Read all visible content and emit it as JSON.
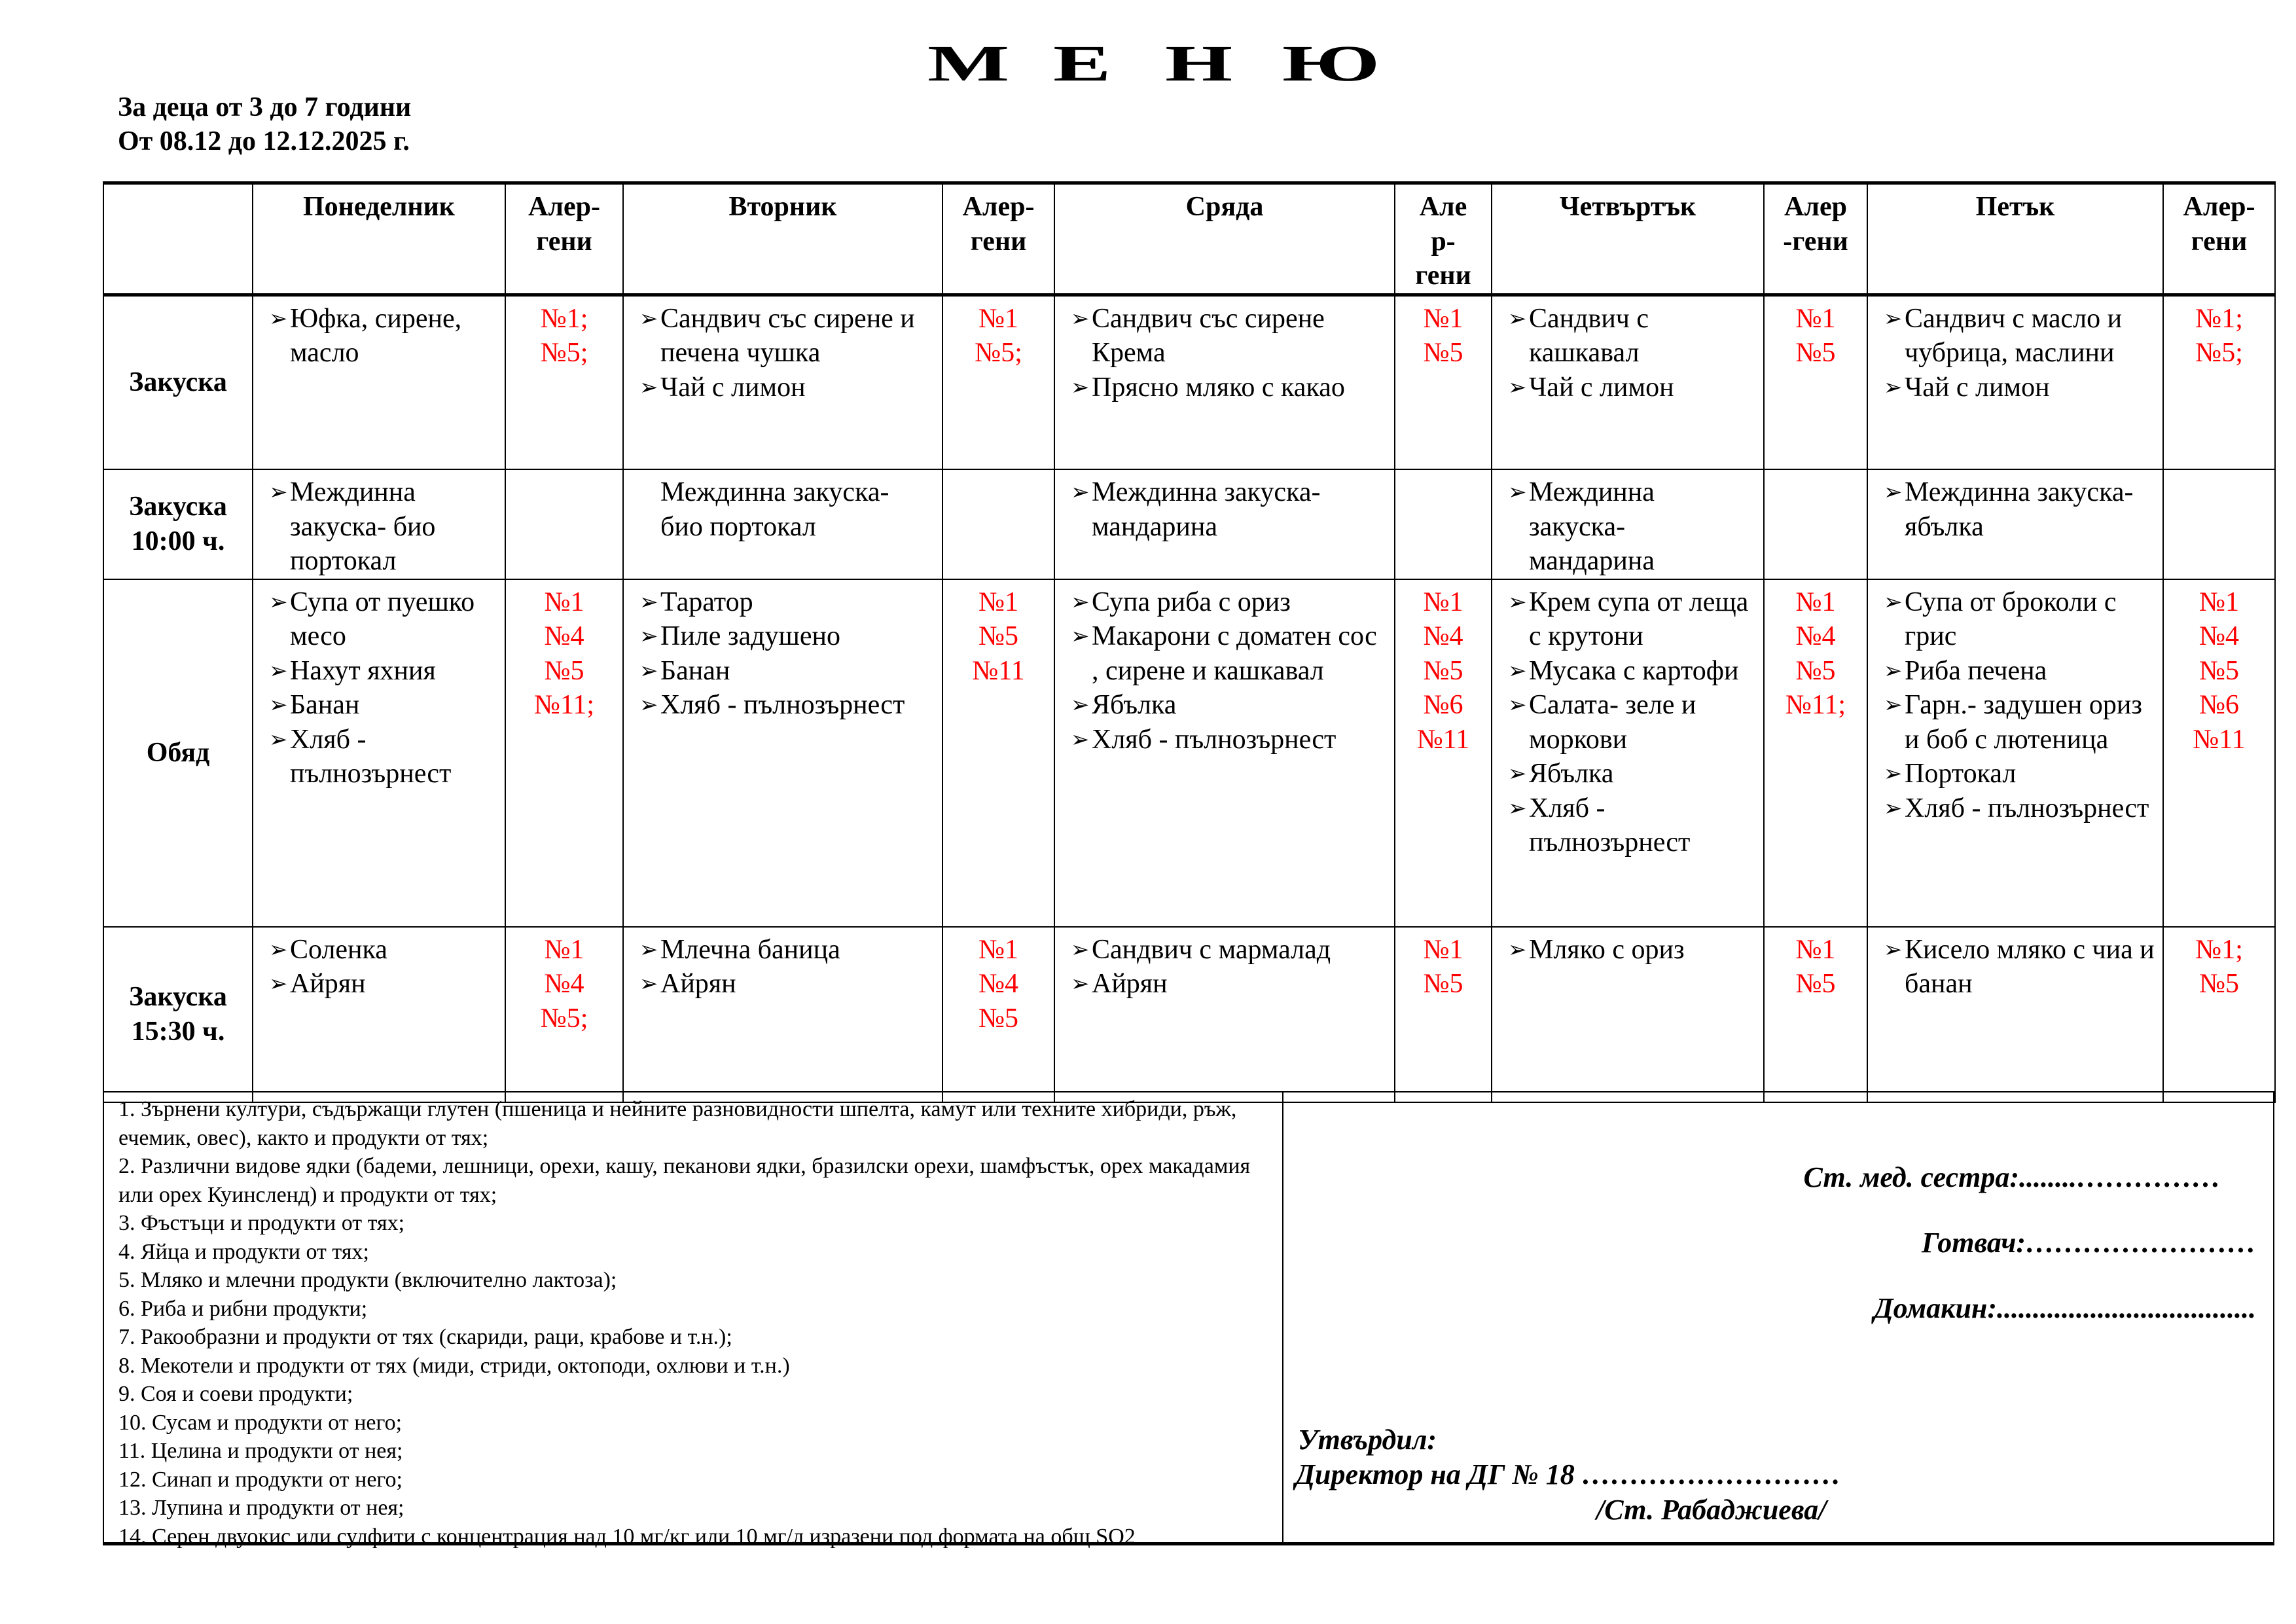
{
  "title_letters": [
    "М",
    "Е",
    "Н",
    "Ю"
  ],
  "subtitle": {
    "age": "За деца от 3 до 7 години",
    "period": "От 08.12 до 12.12.2025 г."
  },
  "colors": {
    "allergen": "#ff0000",
    "text": "#000000"
  },
  "bullet_icon": "arrowhead-bullet",
  "table": {
    "headers": [
      "",
      "Понеделник",
      "Алер-\nгени",
      "Вторник",
      "Алер-\nгени",
      "Сряда",
      "Але\nр-\nгени",
      "Четвъртък",
      "Алер\n-гени",
      "Петък",
      "Алер-\nгени"
    ],
    "rows": [
      {
        "meal": "Закуска",
        "days": [
          {
            "bullet": true,
            "items": [
              "Юфка, сирене, масло"
            ],
            "allergens": [
              "№1;",
              "№5;"
            ]
          },
          {
            "bullet": true,
            "items": [
              "Сандвич със сирене и печена чушка",
              "Чай с лимон"
            ],
            "allergens": [
              "№1",
              "№5;"
            ]
          },
          {
            "bullet": true,
            "items": [
              "Сандвич със сирене Крема",
              "Прясно мляко с какао"
            ],
            "allergens": [
              "№1",
              "№5"
            ]
          },
          {
            "bullet": true,
            "items": [
              "Сандвич с кашкавал",
              "Чай с лимон"
            ],
            "allergens": [
              "№1",
              "№5"
            ]
          },
          {
            "bullet": true,
            "items": [
              "Сандвич с масло и чубрица, маслини",
              "Чай с лимон"
            ],
            "allergens": [
              "№1;",
              "№5;"
            ]
          }
        ]
      },
      {
        "meal": "Закуска\n10:00 ч.",
        "days": [
          {
            "bullet": true,
            "items": [
              "Междинна закуска- био портокал"
            ],
            "allergens": []
          },
          {
            "bullet": false,
            "items": [
              "Междинна закуска- био портокал"
            ],
            "allergens": []
          },
          {
            "bullet": true,
            "items": [
              "Междинна закуска- мандарина"
            ],
            "allergens": []
          },
          {
            "bullet": true,
            "items": [
              "Междинна закуска- мандарина"
            ],
            "allergens": []
          },
          {
            "bullet": true,
            "items": [
              "Междинна закуска-ябълка"
            ],
            "allergens": []
          }
        ]
      },
      {
        "meal": "Обяд",
        "days": [
          {
            "bullet": true,
            "items": [
              "Супа от пуешко месо",
              "Нахут яхния",
              "Банан",
              "Хляб - пълнозърнест"
            ],
            "allergens": [
              "№1",
              "№4",
              "№5",
              "№11;"
            ]
          },
          {
            "bullet": true,
            "items": [
              "Таратор",
              "Пиле задушено",
              "Банан",
              "Хляб - пълнозърнест"
            ],
            "allergens": [
              "№1",
              "№5",
              "№11"
            ]
          },
          {
            "bullet": true,
            "items": [
              "Супа риба с ориз",
              "Макарони с доматен сос , сирене и кашкавал",
              "Ябълка",
              "Хляб - пълнозърнест"
            ],
            "allergens": [
              "№1",
              "№4",
              "№5",
              "№6",
              "№11"
            ]
          },
          {
            "bullet": true,
            "items": [
              "Крем супа от леща с крутони",
              "Мусака с картофи",
              "Салата- зеле и моркови",
              "Ябълка",
              "Хляб - пълнозърнест"
            ],
            "allergens": [
              "№1",
              "№4",
              "№5",
              "№11;"
            ]
          },
          {
            "bullet": true,
            "items": [
              "Супа от броколи с грис",
              "Риба печена",
              "Гарн.- задушен ориз и боб с лютеница",
              "Портокал",
              "Хляб - пълнозърнест"
            ],
            "allergens": [
              "№1",
              "№4",
              "№5",
              "№6",
              "№11"
            ]
          }
        ]
      },
      {
        "meal": "Закуска\n15:30 ч.",
        "days": [
          {
            "bullet": true,
            "items": [
              "Соленка",
              "Айрян"
            ],
            "allergens": [
              "№1",
              "№4",
              "№5;"
            ]
          },
          {
            "bullet": true,
            "items": [
              "Млечна баница",
              "Айрян"
            ],
            "allergens": [
              "№1",
              "№4",
              "№5"
            ]
          },
          {
            "bullet": true,
            "items": [
              "Сандвич с мармалад",
              "Айрян"
            ],
            "allergens": [
              "№1",
              "№5"
            ]
          },
          {
            "bullet": true,
            "items": [
              "Мляко с ориз"
            ],
            "allergens": [
              "№1",
              "№5"
            ]
          },
          {
            "bullet": true,
            "items": [
              "Кисело мляко с чиа и банан"
            ],
            "allergens": [
              "№1;",
              "№5"
            ]
          }
        ]
      }
    ]
  },
  "allergen_legend": [
    "1. Зърнени култури, съдържащи глутен (пшеница и нейните разновидности шпелта, камут или техните хибриди, ръж, ечемик, овес), както и продукти от тях;",
    "2. Различни видове ядки (бадеми, лешници, орехи, кашу, пеканови ядки, бразилски орехи, шамфъстък, орех макадамия или орех Куинсленд) и продукти от тях;",
    "3. Фъстъци и продукти от тях;",
    "4. Яйца и продукти от тях;",
    "5. Мляко и млечни продукти (включително лактоза);",
    "6. Риба и рибни продукти;",
    "7. Ракообразни и продукти от тях (скариди, раци, крабове и т.н.);",
    "8. Мекотели и продукти от тях (миди, стриди, октоподи, охлюви и т.н.)",
    "9. Соя и соеви продукти;",
    "10. Сусам и продукти от него;",
    "11. Целина и продукти от нея;",
    "12. Синап и продукти от него;",
    "13. Лупина и продукти от нея;",
    "14. Серен двуокис или сулфити с концентрация над 10 мг/кг или 10 мг/л изразени под формата на общ SO2"
  ],
  "signatures": {
    "nurse": "Ст.  мед. сестра:........……………",
    "cook": "Готвач:……………………",
    "housekeeper": "Домакин:....................................",
    "approved": "Утвърдил:",
    "director": "Директор на ДГ № 18 ………………………",
    "director_name": "/Ст. Рабаджиева/"
  }
}
